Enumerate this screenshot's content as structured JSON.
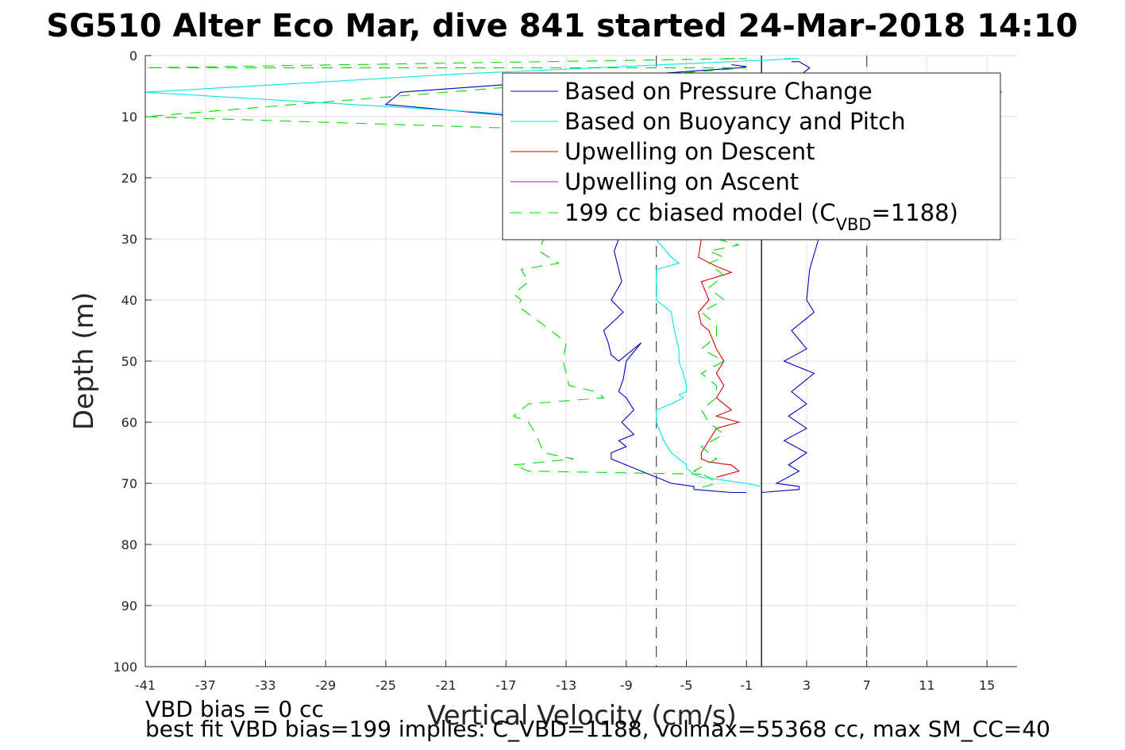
{
  "chart_data": {
    "type": "line",
    "title": "SG510 Alter Eco Mar, dive 841 started 24-Mar-2018 14:10",
    "xlabel": "Vertical Velocity (cm/s)",
    "ylabel": "Depth (m)",
    "xlim": [
      -41,
      17
    ],
    "ylim": [
      0,
      100
    ],
    "y_reversed": true,
    "grid": true,
    "xticks": [
      "-41",
      "-37",
      "-33",
      "-29",
      "-25",
      "-21",
      "-17",
      "-13",
      "-9",
      "-5",
      "-1",
      "3",
      "7",
      "11",
      "15"
    ],
    "yticks": [
      "0",
      "10",
      "20",
      "30",
      "40",
      "50",
      "60",
      "70",
      "80",
      "90",
      "100"
    ],
    "legend_location": "top-right",
    "legend": {
      "pressure": "Based on Pressure Change",
      "buoyancy": "Based on Buoyancy and Pitch",
      "up_descent": "Upwelling on Descent",
      "up_ascent": "Upwelling on Ascent",
      "model_prefix": "199 cc biased model (C",
      "model_sub": "VBD",
      "model_suffix": "=1188)"
    },
    "reference_lines": [
      {
        "x": -7,
        "style": "dashed",
        "color": "#555555"
      },
      {
        "x": 0,
        "style": "solid",
        "color": "#000000"
      },
      {
        "x": 7,
        "style": "dashed",
        "color": "#555555"
      }
    ],
    "series": [
      {
        "key": "pressure",
        "color": "#0000cc",
        "dash": "",
        "segments": [
          {
            "x": [
              -2,
              -1,
              -1.5,
              -24,
              -25,
              -16,
              -12,
              -9.5,
              -9.8,
              -9.5,
              -9.3,
              -10,
              -9.2,
              -10.5,
              -10.2,
              -10,
              -9.5,
              -8,
              -9,
              -9.2,
              -9.5,
              -9,
              -8.5,
              -9.3,
              -8.5,
              -9.5,
              -9,
              -10,
              -10,
              -9,
              -8,
              -6,
              -4.5,
              -4.5,
              -2,
              -1
            ],
            "y": [
              1.5,
              1.8,
              2,
              6,
              8,
              10,
              12,
              30,
              32,
              35,
              37,
              40,
              42,
              45,
              47,
              49,
              50,
              47,
              50,
              53,
              55,
              56,
              58,
              60,
              62,
              63,
              64,
              65,
              66,
              67,
              68,
              70,
              70.5,
              71,
              71.5,
              71.5
            ]
          },
          {
            "x": [
              2,
              2.5,
              3.2,
              2.7,
              3.5,
              2.8,
              3.4,
              2.6,
              3.6,
              3,
              3.5,
              2.9,
              3.8,
              3.2,
              3,
              3.5,
              2,
              3,
              1.5,
              3.5,
              2,
              3,
              1.8,
              3,
              1.5,
              3,
              1.8,
              2.5,
              1,
              2.5,
              2.5,
              0
            ],
            "y": [
              1,
              1,
              2,
              3,
              4,
              5,
              6,
              7,
              8,
              9,
              10,
              12,
              30,
              35,
              40,
              42,
              45,
              48,
              50,
              52,
              55,
              57,
              59,
              61,
              63,
              65,
              67,
              68,
              70,
              70.5,
              71,
              71.5
            ]
          }
        ]
      },
      {
        "key": "buoyancy",
        "color": "#00e5e5",
        "dash": "",
        "segments": [
          {
            "x": [
              1.5,
              2.5,
              -20,
              -41,
              -17,
              -14,
              -6,
              -5.5,
              -7,
              -7,
              -6,
              -5.8,
              -5.5,
              -5.5,
              -5.2,
              -5,
              -5,
              -5.5,
              -5.2,
              -6,
              -7,
              -7,
              -6.5,
              -6,
              -5.5,
              -5.2,
              -5,
              -5,
              -4.5,
              -4,
              -2.5,
              -1,
              0
            ],
            "y": [
              0.5,
              0.5,
              3,
              6,
              9.5,
              10,
              33,
              34,
              35,
              40,
              42,
              45,
              48,
              50,
              52,
              54,
              55,
              55.5,
              56,
              57,
              58,
              60,
              63,
              65,
              66,
              66.5,
              67,
              67.5,
              68.5,
              69,
              69.5,
              70,
              70.5
            ]
          }
        ]
      },
      {
        "key": "up_descent",
        "color": "#dd0000",
        "dash": "",
        "segments": [
          {
            "x": [
              -4,
              -4.2,
              -3,
              -2,
              -4,
              -3.5,
              -4.2,
              -4,
              -3.5,
              -3,
              -2.5,
              -3,
              -2.5,
              -3,
              -2,
              -3,
              -1.5,
              -3,
              -3.5,
              -4,
              -4,
              -3.5,
              -2,
              -1.5,
              -3
            ],
            "y": [
              30,
              33,
              34.5,
              35.5,
              37,
              40,
              42,
              44,
              45,
              48,
              50,
              52,
              54,
              56,
              58,
              59,
              60,
              61,
              63,
              65,
              66,
              66.5,
              67,
              68,
              69
            ]
          },
          {
            "x": [
              15,
              16
            ],
            "y": [
              6,
              6
            ]
          }
        ]
      },
      {
        "key": "up_ascent",
        "color": "#cc00cc",
        "dash": "",
        "segments": []
      },
      {
        "key": "model",
        "color": "#00dd00",
        "dash": "14,10",
        "segments": [
          {
            "x": [
              -2.5,
              -1,
              -41,
              -1,
              -41,
              -15,
              -14.5,
              -14.8,
              -13.5,
              -16,
              -15.5,
              -16.5,
              -16,
              -16.2,
              -14,
              -13,
              -13.2,
              -13,
              -12.8,
              -11,
              -10.5,
              -15.5,
              -16.5,
              -15.5,
              -15,
              -14.5,
              -13.5,
              -12.5,
              -16.5,
              -15.5,
              -4,
              -4.5
            ],
            "y": [
              0.5,
              0.5,
              2,
              2,
              10,
              12,
              30,
              32,
              34,
              35,
              37,
              39,
              40,
              41,
              45,
              47,
              50,
              52,
              54,
              55,
              56,
              57,
              59,
              60,
              62,
              65,
              65.5,
              66,
              67,
              68,
              68.5,
              69
            ]
          },
          {
            "x": [
              -3,
              -1.5,
              -3.5,
              -2.5,
              -3.5,
              -2.5,
              -3.5,
              -2.5,
              -4,
              -3,
              -3,
              -4,
              -2.5,
              -4,
              -3,
              -3,
              -4,
              -3.5,
              -2.5,
              -4,
              -3,
              -4.5,
              -3.5,
              -3,
              -4.5
            ],
            "y": [
              30,
              31,
              32,
              33,
              34,
              36,
              38,
              40,
              42,
              44,
              46,
              48,
              50,
              52,
              54,
              56,
              58,
              60,
              62,
              64,
              66,
              68,
              69,
              70,
              71
            ]
          }
        ]
      }
    ]
  },
  "footer": {
    "line1": "VBD bias = 0 cc",
    "line2": "best fit VBD bias=199 implies: C_VBD=1188, volmax=55368 cc, max SM_CC=40"
  }
}
